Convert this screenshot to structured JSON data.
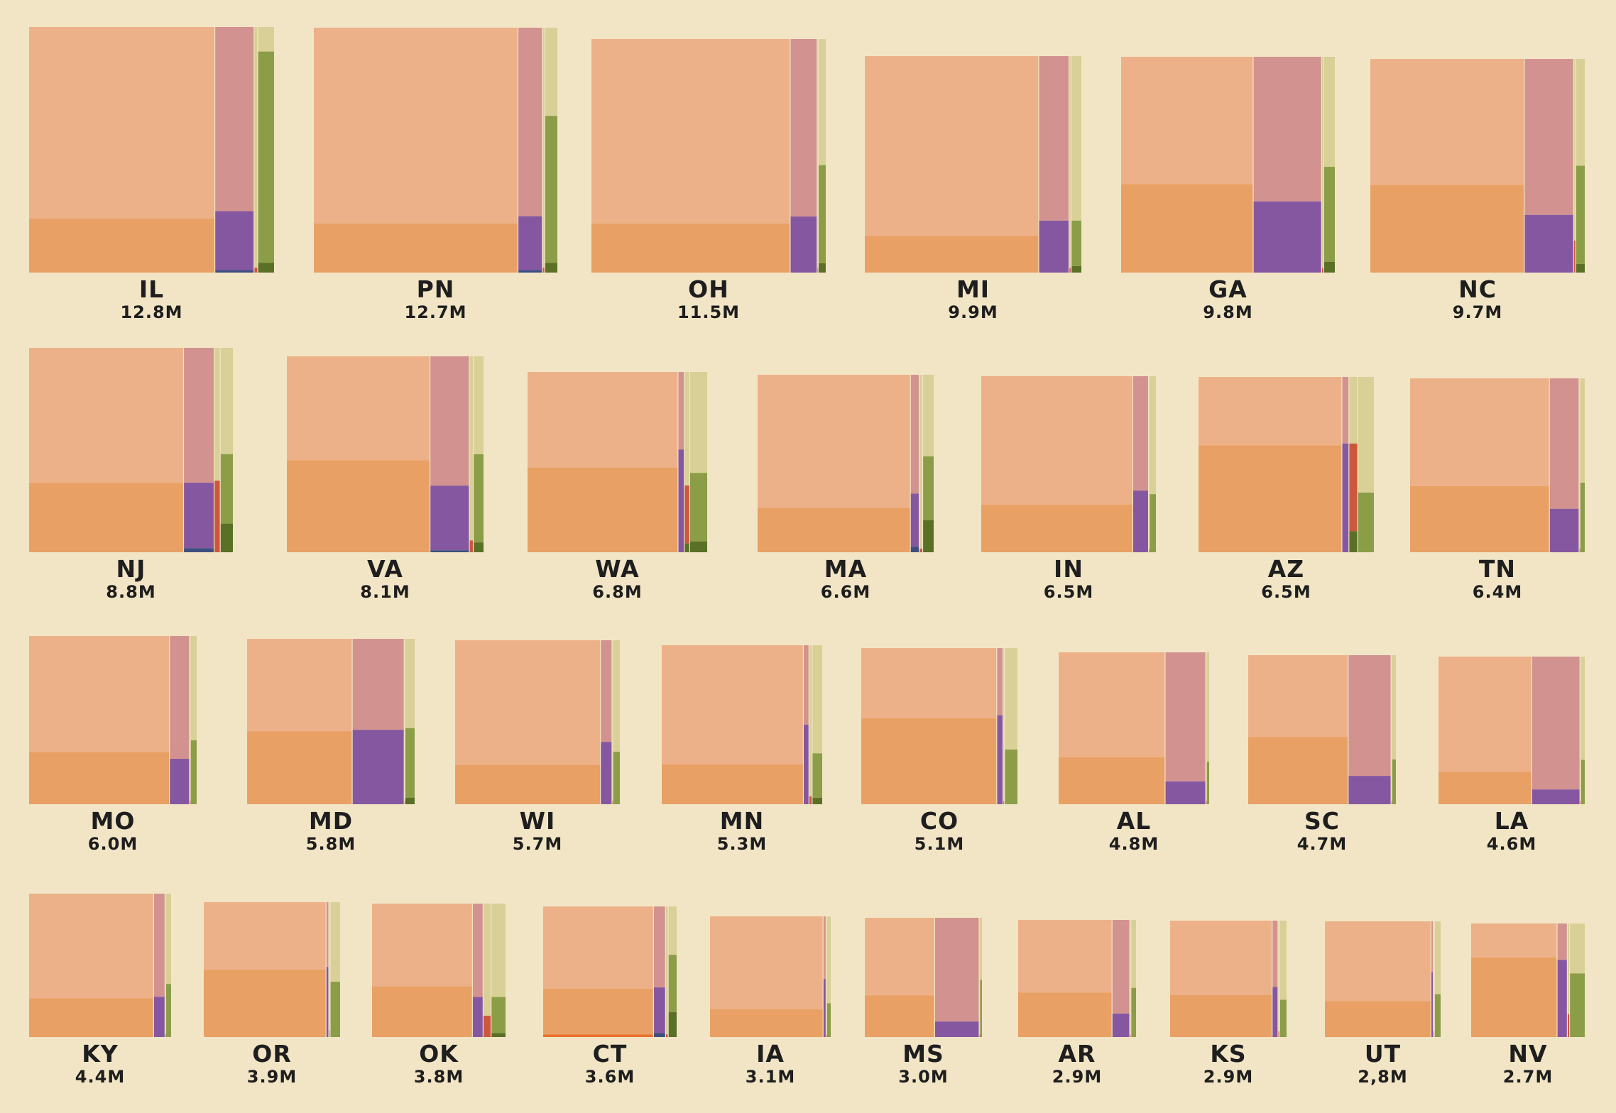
{
  "colors": {
    "background": "#f2e5c5",
    "orange_light": "#edb189",
    "orange_dark": "#e9a065",
    "orange_edge": "#e8722e",
    "rose": "#d29390",
    "purple": "#8657a1",
    "navy": "#3d4f80",
    "red": "#cc573d",
    "khaki": "#d8d097",
    "olive": "#8c9d48",
    "green_dark": "#5a7026"
  },
  "chart_data": [
    {
      "type": "marimekko",
      "state": "IL",
      "population": "12.8M",
      "widths": [
        0.76,
        0.16,
        0.015,
        0.065
      ],
      "splits": [
        [
          0.22
        ],
        [
          0.24,
          0.01
        ],
        [
          0.02
        ],
        [
          0.86,
          0.04
        ]
      ]
    },
    {
      "type": "marimekko",
      "state": "PN",
      "population": "12.7M",
      "widths": [
        0.84,
        0.1,
        0.01,
        0.05
      ],
      "splits": [
        [
          0.2
        ],
        [
          0.22,
          0.01
        ],
        [
          0.02
        ],
        [
          0.6,
          0.04
        ]
      ]
    },
    {
      "type": "marimekko",
      "state": "OH",
      "population": "11.5M",
      "widths": [
        0.85,
        0.115,
        0.005,
        0.03
      ],
      "splits": [
        [
          0.21
        ],
        [
          0.24
        ],
        [
          0.02
        ],
        [
          0.42,
          0.04
        ]
      ]
    },
    {
      "type": "marimekko",
      "state": "MI",
      "population": "9.9M",
      "widths": [
        0.805,
        0.14,
        0.01,
        0.045
      ],
      "splits": [
        [
          0.17
        ],
        [
          0.24
        ],
        [
          0.02
        ],
        [
          0.21,
          0.03
        ]
      ]
    },
    {
      "type": "marimekko",
      "state": "GA",
      "population": "9.8M",
      "widths": [
        0.62,
        0.32,
        0.01,
        0.05
      ],
      "splits": [
        [
          0.41
        ],
        [
          0.33
        ],
        [
          0.02
        ],
        [
          0.44,
          0.05
        ]
      ]
    },
    {
      "type": "marimekko",
      "state": "NC",
      "population": "9.7M",
      "widths": [
        0.72,
        0.23,
        0.01,
        0.04
      ],
      "splits": [
        [
          0.41
        ],
        [
          0.27
        ],
        [
          0.15
        ],
        [
          0.46,
          0.04
        ]
      ]
    },
    {
      "type": "marimekko",
      "state": "NJ",
      "population": "8.8M",
      "widths": [
        0.76,
        0.15,
        0.03,
        0.06
      ],
      "splits": [
        [
          0.34
        ],
        [
          0.32,
          0.02
        ],
        [
          0.35
        ],
        [
          0.34,
          0.14
        ]
      ]
    },
    {
      "type": "marimekko",
      "state": "VA",
      "population": "8.1M",
      "widths": [
        0.73,
        0.2,
        0.02,
        0.05
      ],
      "splits": [
        [
          0.47
        ],
        [
          0.33,
          0.01
        ],
        [
          0.06
        ],
        [
          0.45,
          0.05
        ]
      ]
    },
    {
      "type": "marimekko",
      "state": "WA",
      "population": "6.8M",
      "widths": [
        0.84,
        0.035,
        0.03,
        0.095
      ],
      "splits": [
        [
          0.47
        ],
        [
          0.57
        ],
        [
          0.32,
          0.05
        ],
        [
          0.38,
          0.06
        ]
      ]
    },
    {
      "type": "marimekko",
      "state": "MA",
      "population": "6.6M",
      "widths": [
        0.87,
        0.05,
        0.02,
        0.06
      ],
      "splits": [
        [
          0.25
        ],
        [
          0.3,
          0.03
        ],
        [
          0.02
        ],
        [
          0.36,
          0.18
        ]
      ]
    },
    {
      "type": "marimekko",
      "state": "IN",
      "population": "6.5M",
      "widths": [
        0.87,
        0.09,
        0.005,
        0.035
      ],
      "splits": [
        [
          0.27
        ],
        [
          0.35
        ],
        [
          0.02
        ],
        [
          0.33
        ]
      ]
    },
    {
      "type": "marimekko",
      "state": "AZ",
      "population": "6.5M",
      "widths": [
        0.82,
        0.04,
        0.05,
        0.09
      ],
      "splits": [
        [
          0.61
        ],
        [
          0.62
        ],
        [
          0.5,
          0.12
        ],
        [
          0.34
        ]
      ]
    },
    {
      "type": "marimekko",
      "state": "TN",
      "population": "6.4M",
      "widths": [
        0.8,
        0.17,
        0.005,
        0.025
      ],
      "splits": [
        [
          0.38
        ],
        [
          0.25
        ],
        [
          0.02
        ],
        [
          0.4
        ]
      ]
    },
    {
      "type": "marimekko",
      "state": "MO",
      "population": "6.0M",
      "widths": [
        0.84,
        0.12,
        0.005,
        0.035
      ],
      "splits": [
        [
          0.31
        ],
        [
          0.27
        ],
        [
          0.02
        ],
        [
          0.38
        ]
      ]
    },
    {
      "type": "marimekko",
      "state": "MD",
      "population": "5.8M",
      "widths": [
        0.63,
        0.31,
        0.005,
        0.055
      ],
      "splits": [
        [
          0.44
        ],
        [
          0.45
        ],
        [
          0.02
        ],
        [
          0.42,
          0.04
        ]
      ]
    },
    {
      "type": "marimekko",
      "state": "WI",
      "population": "5.7M",
      "widths": [
        0.885,
        0.07,
        0.005,
        0.04
      ],
      "splits": [
        [
          0.24
        ],
        [
          0.38
        ],
        [
          0.02
        ],
        [
          0.32
        ]
      ]
    },
    {
      "type": "marimekko",
      "state": "MN",
      "population": "5.3M",
      "widths": [
        0.885,
        0.035,
        0.02,
        0.06
      ],
      "splits": [
        [
          0.25
        ],
        [
          0.5
        ],
        [
          0.05
        ],
        [
          0.28,
          0.04
        ]
      ]
    },
    {
      "type": "marimekko",
      "state": "CO",
      "population": "5.1M",
      "widths": [
        0.87,
        0.04,
        0.01,
        0.08
      ],
      "splits": [
        [
          0.55
        ],
        [
          0.57
        ],
        [
          0.02
        ],
        [
          0.35
        ]
      ]
    },
    {
      "type": "marimekko",
      "state": "AL",
      "population": "4.8M",
      "widths": [
        0.71,
        0.27,
        0.005,
        0.015
      ],
      "splits": [
        [
          0.31
        ],
        [
          0.15
        ],
        [
          0.02
        ],
        [
          0.28
        ]
      ]
    },
    {
      "type": "marimekko",
      "state": "SC",
      "population": "4.7M",
      "widths": [
        0.68,
        0.29,
        0.005,
        0.025
      ],
      "splits": [
        [
          0.45
        ],
        [
          0.19
        ],
        [
          0.02
        ],
        [
          0.3
        ]
      ]
    },
    {
      "type": "marimekko",
      "state": "LA",
      "population": "4.6M",
      "widths": [
        0.64,
        0.33,
        0.005,
        0.025
      ],
      "splits": [
        [
          0.22
        ],
        [
          0.1
        ],
        [
          0.02
        ],
        [
          0.3
        ]
      ]
    },
    {
      "type": "marimekko",
      "state": "KY",
      "population": "4.4M",
      "widths": [
        0.88,
        0.08,
        0.005,
        0.035
      ],
      "splits": [
        [
          0.27
        ],
        [
          0.28
        ],
        [
          0.02
        ],
        [
          0.37
        ]
      ]
    },
    {
      "type": "marimekko",
      "state": "OR",
      "population": "3.9M",
      "widths": [
        0.9,
        0.02,
        0.01,
        0.07
      ],
      "splits": [
        [
          0.5
        ],
        [
          0.52
        ],
        [
          0.05
        ],
        [
          0.41
        ]
      ]
    },
    {
      "type": "marimekko",
      "state": "OK",
      "population": "3.8M",
      "widths": [
        0.755,
        0.08,
        0.06,
        0.105
      ],
      "splits": [
        [
          0.38
        ],
        [
          0.3
        ],
        [
          0.16
        ],
        [
          0.27,
          0.03
        ]
      ]
    },
    {
      "type": "marimekko",
      "state": "CT",
      "population": "3.6M",
      "widths": [
        0.83,
        0.09,
        0.02,
        0.06
      ],
      "splits": [
        [
          0.35,
          0.02
        ],
        [
          0.35,
          0.03
        ],
        [
          0.02
        ],
        [
          0.44,
          0.19
        ]
      ]
    },
    {
      "type": "marimekko",
      "state": "IA",
      "population": "3.1M",
      "widths": [
        0.94,
        0.025,
        0.005,
        0.03
      ],
      "splits": [
        [
          0.23
        ],
        [
          0.48
        ],
        [
          0.02
        ],
        [
          0.28
        ]
      ]
    },
    {
      "type": "marimekko",
      "state": "MS",
      "population": "3.0M",
      "widths": [
        0.6,
        0.38,
        0.005,
        0.015
      ],
      "splits": [
        [
          0.35
        ],
        [
          0.13
        ],
        [
          0.02
        ],
        [
          0.48
        ]
      ]
    },
    {
      "type": "marimekko",
      "state": "AR",
      "population": "2.9M",
      "widths": [
        0.8,
        0.15,
        0.01,
        0.04
      ],
      "splits": [
        [
          0.38
        ],
        [
          0.2
        ],
        [
          0.02
        ],
        [
          0.42
        ]
      ]
    },
    {
      "type": "marimekko",
      "state": "KS",
      "population": "2.9M",
      "widths": [
        0.88,
        0.05,
        0.015,
        0.055
      ],
      "splits": [
        [
          0.36
        ],
        [
          0.43
        ],
        [
          0.05
        ],
        [
          0.32
        ]
      ]
    },
    {
      "type": "marimekko",
      "state": "UT",
      "population": "2,8M",
      "widths": [
        0.92,
        0.02,
        0.01,
        0.05
      ],
      "splits": [
        [
          0.31
        ],
        [
          0.56
        ],
        [
          0.05
        ],
        [
          0.37
        ]
      ]
    },
    {
      "type": "marimekko",
      "state": "NV",
      "population": "2.7M",
      "widths": [
        0.76,
        0.09,
        0.02,
        0.13
      ],
      "splits": [
        [
          0.7
        ],
        [
          0.68
        ],
        [
          0.2
        ],
        [
          0.56
        ]
      ]
    }
  ]
}
